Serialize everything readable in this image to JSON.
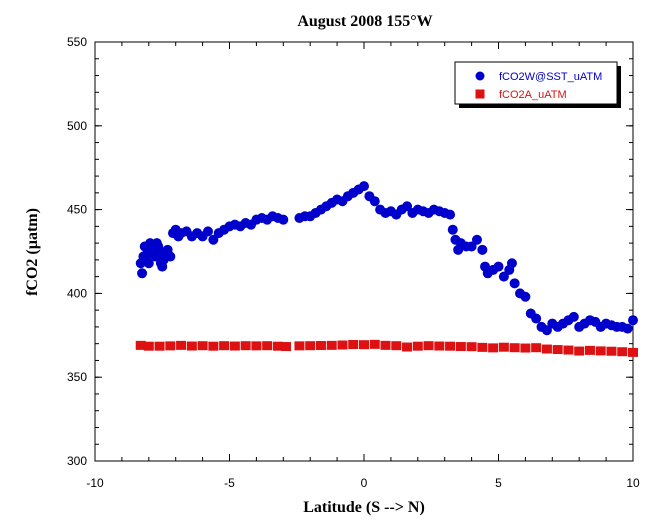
{
  "chart_data": {
    "type": "scatter",
    "title": "August 2008 155°W",
    "xlabel": "Latitude (S --> N)",
    "ylabel": "fCO2 (µatm)",
    "xlim": [
      -10,
      10
    ],
    "ylim": [
      300,
      550
    ],
    "xticks": [
      -10,
      -5,
      0,
      5,
      10
    ],
    "yticks": [
      300,
      350,
      400,
      450,
      500,
      550
    ],
    "grid": false,
    "legend_position": "top-right",
    "series": [
      {
        "name": "fCO2W@SST_uATM",
        "color": "#0000cc",
        "marker": "circle",
        "x": [
          -8.3,
          -8.25,
          -8.2,
          -8.15,
          -8.1,
          -8.05,
          -8.0,
          -7.95,
          -7.9,
          -7.85,
          -7.8,
          -7.75,
          -7.7,
          -7.65,
          -7.6,
          -7.55,
          -7.5,
          -7.45,
          -7.4,
          -7.3,
          -7.2,
          -7.1,
          -7.0,
          -6.9,
          -6.8,
          -6.6,
          -6.4,
          -6.2,
          -6.0,
          -5.8,
          -5.6,
          -5.4,
          -5.2,
          -5.0,
          -4.8,
          -4.6,
          -4.4,
          -4.2,
          -4.0,
          -3.8,
          -3.6,
          -3.4,
          -3.2,
          -3.0,
          -2.4,
          -2.2,
          -2.0,
          -1.8,
          -1.6,
          -1.4,
          -1.2,
          -1.0,
          -0.8,
          -0.6,
          -0.4,
          -0.2,
          0.0,
          0.2,
          0.4,
          0.6,
          0.8,
          1.0,
          1.2,
          1.4,
          1.6,
          1.8,
          2.0,
          2.2,
          2.4,
          2.6,
          2.8,
          3.0,
          3.2,
          3.3,
          3.4,
          3.5,
          3.6,
          3.8,
          4.0,
          4.2,
          4.4,
          4.5,
          4.6,
          4.8,
          5.0,
          5.2,
          5.4,
          5.5,
          5.6,
          5.8,
          6.0,
          6.2,
          6.4,
          6.6,
          6.8,
          7.0,
          7.2,
          7.4,
          7.6,
          7.8,
          8.0,
          8.2,
          8.4,
          8.6,
          8.8,
          9.0,
          9.2,
          9.4,
          9.6,
          9.8,
          10.0
        ],
        "y": [
          418,
          412,
          422,
          428,
          420,
          426,
          418,
          430,
          424,
          428,
          426,
          422,
          430,
          428,
          425,
          418,
          416,
          420,
          424,
          426,
          422,
          436,
          438,
          434,
          436,
          437,
          434,
          436,
          434,
          437,
          432,
          436,
          438,
          440,
          441,
          440,
          442,
          441,
          444,
          445,
          444,
          446,
          445,
          444,
          445,
          446,
          446,
          448,
          450,
          452,
          454,
          456,
          455,
          458,
          460,
          462,
          464,
          458,
          455,
          450,
          448,
          449,
          447,
          450,
          452,
          448,
          450,
          449,
          448,
          450,
          449,
          448,
          447,
          438,
          432,
          426,
          430,
          428,
          428,
          432,
          426,
          416,
          412,
          414,
          416,
          410,
          414,
          418,
          406,
          400,
          398,
          388,
          385,
          380,
          378,
          382,
          380,
          382,
          384,
          386,
          380,
          382,
          384,
          383,
          380,
          382,
          381,
          380,
          380,
          379,
          384
        ]
      },
      {
        "name": "fCO2A_uATM",
        "color": "#dd1111",
        "marker": "square",
        "x": [
          -8.3,
          -8.0,
          -7.6,
          -7.2,
          -6.8,
          -6.4,
          -6.0,
          -5.6,
          -5.2,
          -4.8,
          -4.4,
          -4.0,
          -3.6,
          -3.2,
          -2.9,
          -2.4,
          -2.0,
          -1.6,
          -1.2,
          -0.8,
          -0.4,
          0.0,
          0.4,
          0.8,
          1.2,
          1.6,
          2.0,
          2.4,
          2.8,
          3.2,
          3.6,
          4.0,
          4.4,
          4.8,
          5.2,
          5.6,
          6.0,
          6.4,
          6.8,
          7.2,
          7.6,
          8.0,
          8.4,
          8.8,
          9.2,
          9.6,
          10.0
        ],
        "y": [
          369,
          368.5,
          368.5,
          368.7,
          369,
          368.6,
          368.8,
          368.5,
          368.8,
          368.6,
          368.8,
          368.7,
          368.8,
          368.5,
          368.3,
          368.7,
          368.8,
          368.9,
          369,
          369.2,
          369.5,
          369.4,
          369.6,
          369,
          368.8,
          368,
          368.5,
          368.8,
          368.6,
          368.5,
          368.3,
          368.2,
          367.8,
          367.5,
          367.9,
          367.6,
          367.4,
          367.6,
          366.8,
          366.5,
          366.2,
          365.6,
          366,
          365.7,
          365.5,
          365.2,
          364.8
        ]
      }
    ]
  }
}
